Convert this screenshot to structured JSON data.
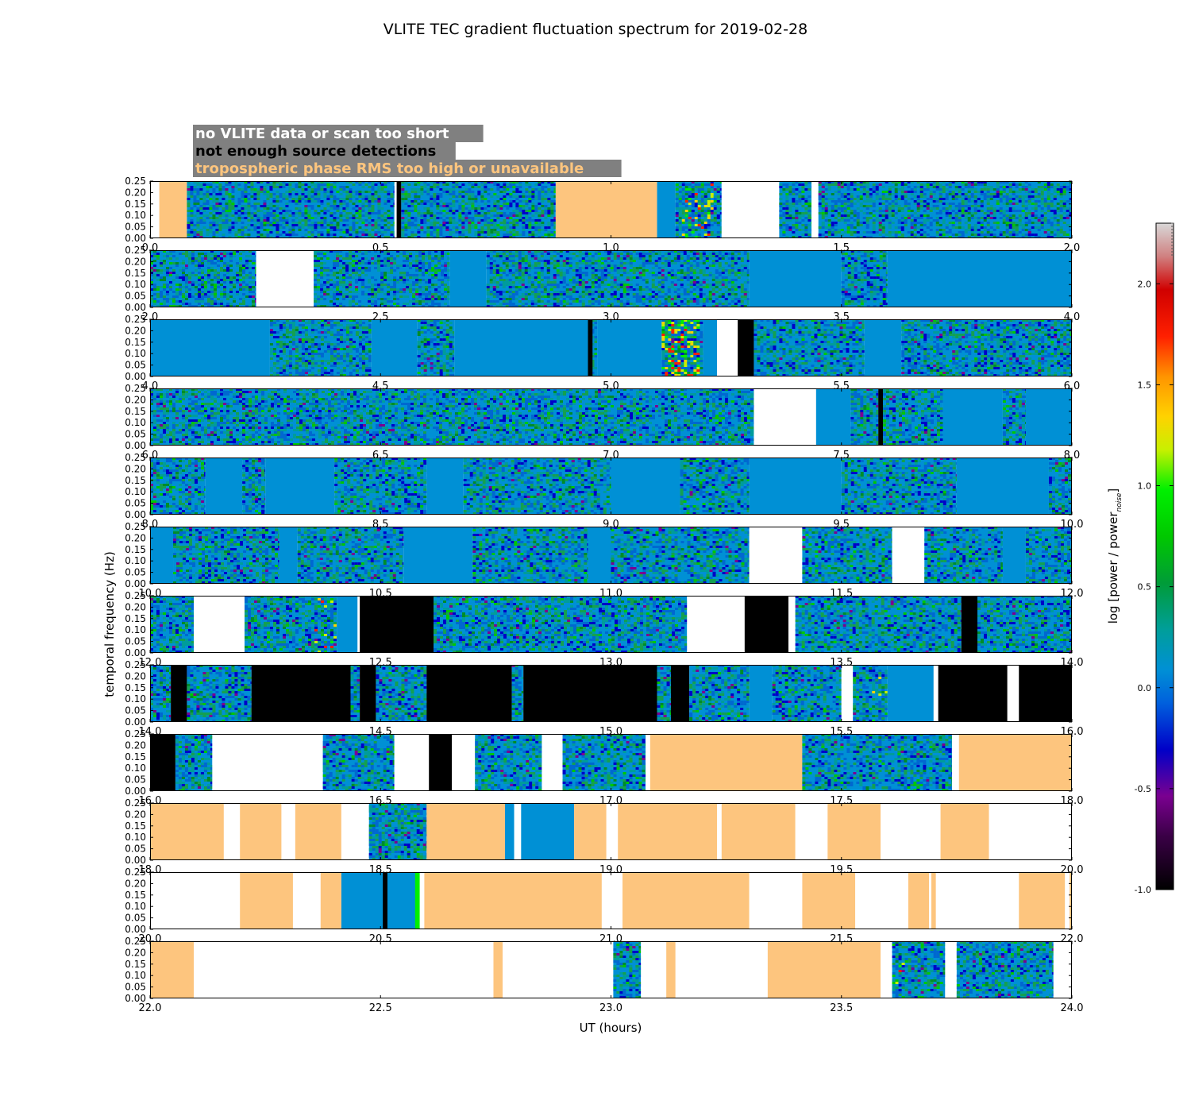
{
  "chart_data": {
    "type": "heatmap",
    "title": "VLITE TEC gradient fluctuation spectrum for 2019-02-28",
    "xlabel": "UT (hours)",
    "ylabel": "temporal frequency (Hz)",
    "colorbar_label_prefix": "log [power / power",
    "colorbar_label_sub": "noise",
    "colorbar_label_suffix": "]",
    "colorbar_range": [
      -1.0,
      2.3
    ],
    "colorbar_ticks": [
      "-1.0",
      "-0.5",
      "0.0",
      "0.5",
      "1.0",
      "1.5",
      "2.0"
    ],
    "ylim": [
      0,
      0.25
    ],
    "y_ticks": [
      "0.00",
      "0.05",
      "0.10",
      "0.15",
      "0.20",
      "0.25"
    ],
    "legend": [
      {
        "label": "no VLITE data or scan too short",
        "text_color": "#ffffff"
      },
      {
        "label": "not enough source detections",
        "text_color": "#000000"
      },
      {
        "label": "tropospheric phase RMS too high or unavailable",
        "text_color": "#fdc57e"
      }
    ],
    "colors": {
      "nodata": "#ffffff",
      "nodetect": "#000000",
      "tropo": "#fdc57e",
      "legend_box": "#808080",
      "baseline": "#0090d5"
    },
    "rows": [
      {
        "range": [
          0.0,
          2.0
        ],
        "x_ticks": [
          "0.0",
          "0.5",
          "1.0",
          "1.5",
          "2.0"
        ],
        "segments": [
          [
            "tropo",
            0.02,
            0.08
          ],
          [
            "data",
            0.08,
            0.53
          ],
          [
            "black",
            0.535,
            0.545
          ],
          [
            "data",
            0.545,
            0.88
          ],
          [
            "tropo",
            0.88,
            1.1
          ],
          [
            "blue",
            1.1,
            1.14
          ],
          [
            "data",
            1.14,
            1.24
          ],
          [
            "white",
            1.24,
            1.365
          ],
          [
            "data",
            1.365,
            1.435
          ],
          [
            "white",
            1.435,
            1.45
          ],
          [
            "data",
            1.45,
            2.0
          ]
        ],
        "warm": [
          [
            1.15,
            1.22,
            0.5
          ]
        ]
      },
      {
        "range": [
          2.0,
          4.0
        ],
        "x_ticks": [
          "2.0",
          "2.5",
          "3.0",
          "3.5",
          "4.0"
        ],
        "segments": [
          [
            "data",
            2.0,
            2.23
          ],
          [
            "white",
            2.23,
            2.355
          ],
          [
            "data",
            2.355,
            2.65
          ],
          [
            "blue",
            2.65,
            2.73
          ],
          [
            "data",
            2.73,
            3.3
          ],
          [
            "blue",
            3.3,
            3.5
          ],
          [
            "data",
            3.5,
            3.6
          ],
          [
            "blue",
            3.6,
            4.0
          ]
        ],
        "warm": []
      },
      {
        "range": [
          4.0,
          6.0
        ],
        "x_ticks": [
          "4.0",
          "4.5",
          "5.0",
          "5.5",
          "6.0"
        ],
        "segments": [
          [
            "blue",
            4.0,
            4.26
          ],
          [
            "data",
            4.26,
            4.48
          ],
          [
            "blue",
            4.48,
            4.58
          ],
          [
            "data",
            4.58,
            4.66
          ],
          [
            "blue",
            4.66,
            4.95
          ],
          [
            "data",
            4.95,
            4.97
          ],
          [
            "black",
            4.95,
            4.96
          ],
          [
            "blue",
            4.97,
            5.11
          ],
          [
            "data",
            5.11,
            5.2
          ],
          [
            "blue",
            5.2,
            5.23
          ],
          [
            "white",
            5.23,
            5.275
          ],
          [
            "black",
            5.275,
            5.31
          ],
          [
            "data",
            5.31,
            5.55
          ],
          [
            "blue",
            5.55,
            5.63
          ],
          [
            "data",
            5.63,
            6.0
          ]
        ],
        "warm": [
          [
            5.11,
            5.19,
            1.0
          ],
          [
            5.21,
            5.23,
            1.0
          ]
        ]
      },
      {
        "range": [
          6.0,
          8.0
        ],
        "x_ticks": [
          "6.0",
          "6.5",
          "7.0",
          "7.5",
          "8.0"
        ],
        "segments": [
          [
            "data",
            6.0,
            7.31
          ],
          [
            "white",
            7.31,
            7.445
          ],
          [
            "blue",
            7.445,
            7.52
          ],
          [
            "data",
            7.52,
            7.58
          ],
          [
            "black",
            7.58,
            7.59
          ],
          [
            "data",
            7.59,
            7.72
          ],
          [
            "blue",
            7.72,
            7.85
          ],
          [
            "data",
            7.85,
            7.9
          ],
          [
            "blue",
            7.9,
            8.0
          ]
        ],
        "warm": []
      },
      {
        "range": [
          8.0,
          10.0
        ],
        "x_ticks": [
          "8.0",
          "8.5",
          "9.0",
          "9.5",
          "10.0"
        ],
        "segments": [
          [
            "data",
            8.0,
            8.12
          ],
          [
            "blue",
            8.12,
            8.2
          ],
          [
            "data",
            8.2,
            8.25
          ],
          [
            "blue",
            8.25,
            8.4
          ],
          [
            "data",
            8.4,
            8.6
          ],
          [
            "blue",
            8.6,
            8.68
          ],
          [
            "data",
            8.68,
            9.0
          ],
          [
            "blue",
            9.0,
            9.15
          ],
          [
            "data",
            9.15,
            9.3
          ],
          [
            "blue",
            9.3,
            9.5
          ],
          [
            "data",
            9.5,
            9.75
          ],
          [
            "blue",
            9.75,
            9.95
          ],
          [
            "data",
            9.95,
            10.0
          ]
        ],
        "warm": []
      },
      {
        "range": [
          10.0,
          12.0
        ],
        "x_ticks": [
          "10.0",
          "10.5",
          "11.0",
          "11.5",
          "12.0"
        ],
        "segments": [
          [
            "blue",
            10.0,
            10.05
          ],
          [
            "data",
            10.05,
            10.28
          ],
          [
            "blue",
            10.28,
            10.32
          ],
          [
            "data",
            10.32,
            10.55
          ],
          [
            "blue",
            10.55,
            10.7
          ],
          [
            "data",
            10.7,
            10.95
          ],
          [
            "blue",
            10.95,
            11.0
          ],
          [
            "data",
            11.0,
            11.3
          ],
          [
            "white",
            11.3,
            11.415
          ],
          [
            "data",
            11.415,
            11.61
          ],
          [
            "white",
            11.61,
            11.68
          ],
          [
            "data",
            11.68,
            11.85
          ],
          [
            "blue",
            11.85,
            11.9
          ],
          [
            "data",
            11.9,
            12.0
          ]
        ],
        "warm": []
      },
      {
        "range": [
          12.0,
          14.0
        ],
        "x_ticks": [
          "12.0",
          "12.5",
          "13.0",
          "13.5",
          "14.0"
        ],
        "segments": [
          [
            "data",
            12.0,
            12.095
          ],
          [
            "white",
            12.095,
            12.205
          ],
          [
            "data",
            12.205,
            12.405
          ],
          [
            "blue",
            12.405,
            12.45
          ],
          [
            "black",
            12.455,
            12.615
          ],
          [
            "data",
            12.615,
            13.165
          ],
          [
            "white",
            13.165,
            13.29
          ],
          [
            "black",
            13.29,
            13.385
          ],
          [
            "white",
            13.385,
            13.4
          ],
          [
            "data",
            13.4,
            13.76
          ],
          [
            "black",
            13.76,
            13.795
          ],
          [
            "data",
            13.795,
            14.0
          ]
        ],
        "warm": [
          [
            12.35,
            12.44,
            0.35
          ]
        ]
      },
      {
        "range": [
          14.0,
          16.0
        ],
        "x_ticks": [
          "14.0",
          "14.5",
          "15.0",
          "15.5",
          "16.0"
        ],
        "segments": [
          [
            "data",
            14.0,
            14.045
          ],
          [
            "black",
            14.045,
            14.08
          ],
          [
            "data",
            14.08,
            14.22
          ],
          [
            "black",
            14.22,
            14.435
          ],
          [
            "data",
            14.435,
            14.455
          ],
          [
            "black",
            14.455,
            14.49
          ],
          [
            "data",
            14.49,
            14.6
          ],
          [
            "black",
            14.6,
            14.785
          ],
          [
            "data",
            14.785,
            14.81
          ],
          [
            "black",
            14.81,
            15.1
          ],
          [
            "data",
            15.1,
            15.13
          ],
          [
            "black",
            15.13,
            15.17
          ],
          [
            "data",
            15.17,
            15.3
          ],
          [
            "blue",
            15.3,
            15.35
          ],
          [
            "data",
            15.35,
            15.5
          ],
          [
            "white",
            15.5,
            15.525
          ],
          [
            "data",
            15.525,
            15.6
          ],
          [
            "blue",
            15.6,
            15.7
          ],
          [
            "white",
            15.7,
            15.71
          ],
          [
            "black",
            15.71,
            15.86
          ],
          [
            "white",
            15.86,
            15.885
          ],
          [
            "black",
            15.885,
            16.0
          ]
        ],
        "warm": [
          [
            15.55,
            15.62,
            0.2
          ]
        ]
      },
      {
        "range": [
          16.0,
          18.0
        ],
        "x_ticks": [
          "16.0",
          "16.5",
          "17.0",
          "17.5",
          "18.0"
        ],
        "segments": [
          [
            "black",
            16.0,
            16.055
          ],
          [
            "data",
            16.055,
            16.135
          ],
          [
            "white",
            16.135,
            16.375
          ],
          [
            "data",
            16.375,
            16.53
          ],
          [
            "white",
            16.53,
            16.605
          ],
          [
            "black",
            16.605,
            16.655
          ],
          [
            "white",
            16.655,
            16.705
          ],
          [
            "data",
            16.705,
            16.85
          ],
          [
            "white",
            16.85,
            16.895
          ],
          [
            "data",
            16.895,
            17.075
          ],
          [
            "tropo",
            17.085,
            17.415
          ],
          [
            "data",
            17.415,
            17.74
          ],
          [
            "white",
            17.74,
            17.755
          ],
          [
            "tropo",
            17.755,
            18.0
          ]
        ],
        "warm": []
      },
      {
        "range": [
          18.0,
          20.0
        ],
        "x_ticks": [
          "18.0",
          "18.5",
          "19.0",
          "19.5",
          "20.0"
        ],
        "segments": [
          [
            "tropo",
            18.0,
            18.16
          ],
          [
            "white",
            18.16,
            18.195
          ],
          [
            "tropo",
            18.195,
            18.285
          ],
          [
            "white",
            18.285,
            18.315
          ],
          [
            "tropo",
            18.315,
            18.415
          ],
          [
            "white",
            18.415,
            18.475
          ],
          [
            "data",
            18.475,
            18.6
          ],
          [
            "tropo",
            18.6,
            18.77
          ],
          [
            "blue",
            18.77,
            18.79
          ],
          [
            "white",
            18.79,
            18.805
          ],
          [
            "blue",
            18.805,
            18.92
          ],
          [
            "tropo",
            18.92,
            18.99
          ],
          [
            "white",
            18.99,
            19.015
          ],
          [
            "tropo",
            19.015,
            19.23
          ],
          [
            "white",
            19.23,
            19.24
          ],
          [
            "tropo",
            19.24,
            19.4
          ],
          [
            "white",
            19.4,
            19.47
          ],
          [
            "tropo",
            19.47,
            19.585
          ],
          [
            "white",
            19.585,
            19.715
          ],
          [
            "tropo",
            19.715,
            19.82
          ],
          [
            "white",
            19.82,
            20.0
          ]
        ],
        "warm": []
      },
      {
        "range": [
          20.0,
          22.0
        ],
        "x_ticks": [
          "20.0",
          "20.5",
          "21.0",
          "21.5",
          "22.0"
        ],
        "segments": [
          [
            "white",
            20.0,
            20.195
          ],
          [
            "tropo",
            20.195,
            20.31
          ],
          [
            "white",
            20.31,
            20.37
          ],
          [
            "tropo",
            20.37,
            20.415
          ],
          [
            "blue",
            20.415,
            20.58
          ],
          [
            "white",
            20.58,
            20.595
          ],
          [
            "tropo",
            20.595,
            20.98
          ],
          [
            "white",
            20.98,
            21.025
          ],
          [
            "tropo",
            21.025,
            21.3
          ],
          [
            "white",
            21.3,
            21.415
          ],
          [
            "tropo",
            21.415,
            21.53
          ],
          [
            "white",
            21.53,
            21.645
          ],
          [
            "tropo",
            21.645,
            21.69
          ],
          [
            "white",
            21.69,
            21.695
          ],
          [
            "tropo",
            21.695,
            21.705
          ],
          [
            "white",
            21.705,
            21.885
          ],
          [
            "tropo",
            21.885,
            21.985
          ],
          [
            "white",
            21.985,
            21.995
          ],
          [
            "tropo",
            21.995,
            22.0
          ]
        ],
        "warm": [],
        "marks": [
          [
            "black",
            20.505,
            20.515
          ],
          [
            "warm",
            20.575,
            20.585
          ]
        ]
      },
      {
        "range": [
          22.0,
          24.0
        ],
        "x_ticks": [
          "22.0",
          "22.5",
          "23.0",
          "23.5",
          "24.0"
        ],
        "segments": [
          [
            "tropo",
            22.0,
            22.095
          ],
          [
            "white",
            22.095,
            22.745
          ],
          [
            "tropo",
            22.745,
            22.765
          ],
          [
            "white",
            22.765,
            23.005
          ],
          [
            "data",
            23.005,
            23.065
          ],
          [
            "white",
            23.065,
            23.12
          ],
          [
            "tropo",
            23.12,
            23.14
          ],
          [
            "white",
            23.14,
            23.34
          ],
          [
            "tropo",
            23.34,
            23.585
          ],
          [
            "white",
            23.585,
            23.61
          ],
          [
            "data",
            23.61,
            23.725
          ],
          [
            "white",
            23.725,
            23.75
          ],
          [
            "data",
            23.75,
            23.96
          ],
          [
            "white",
            23.96,
            24.0
          ]
        ],
        "warm": [
          [
            23.61,
            23.64,
            0.12
          ]
        ]
      }
    ]
  }
}
